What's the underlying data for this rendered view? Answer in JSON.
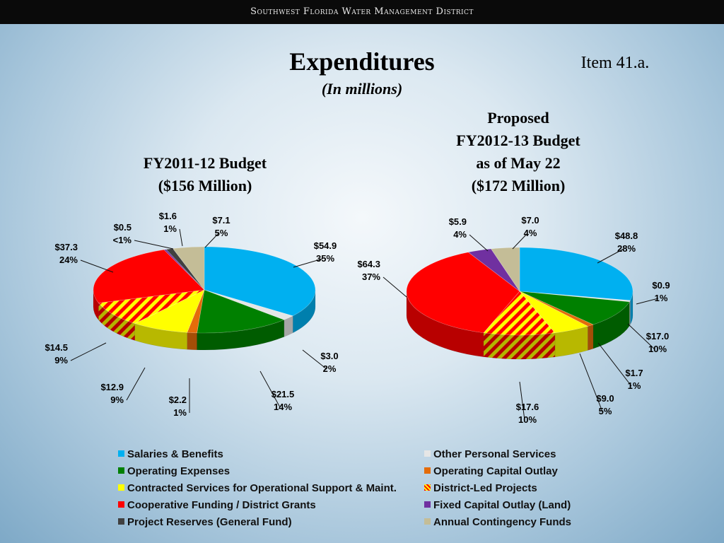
{
  "header": {
    "org": "Southwest Florida Water Management District"
  },
  "slide": {
    "title": "Expenditures",
    "subtitle": "(In millions)",
    "item": "Item 41.a."
  },
  "colors": {
    "salaries": "#00b0f0",
    "other_personal": "#e6e6e6",
    "operating_expenses": "#008000",
    "operating_capital": "#e46c0a",
    "contracted": "#ffff00",
    "district_led": "#ff0000/#ffff00 hatched",
    "cooperative": "#ff0000",
    "fixed_capital": "#7030a0",
    "reserves": "#404040",
    "contingency": "#c4bd97"
  },
  "legend": [
    {
      "label": "Salaries & Benefits",
      "color": "#00b0f0",
      "pattern": false
    },
    {
      "label": "Other Personal Services",
      "color": "#e6e6e6",
      "pattern": false
    },
    {
      "label": "Operating Expenses",
      "color": "#008000",
      "pattern": false
    },
    {
      "label": "Operating Capital Outlay",
      "color": "#e46c0a",
      "pattern": false
    },
    {
      "label": "Contracted Services for Operational Support & Maint.",
      "color": "#ffff00",
      "pattern": false
    },
    {
      "label": "District-Led Projects",
      "color": "#ff0000",
      "pattern": true
    },
    {
      "label": "Cooperative Funding / District Grants",
      "color": "#ff0000",
      "pattern": false
    },
    {
      "label": "Fixed Capital Outlay (Land)",
      "color": "#7030a0",
      "pattern": false
    },
    {
      "label": "Project Reserves (General Fund)",
      "color": "#404040",
      "pattern": false
    },
    {
      "label": "Annual Contingency Funds",
      "color": "#c4bd97",
      "pattern": false
    }
  ],
  "chart_data": [
    {
      "type": "pie",
      "title": [
        "FY2011-12 Budget",
        "($156 Million)"
      ],
      "slices": [
        {
          "category": "Salaries & Benefits",
          "value": 54.9,
          "value_label": "$54.9",
          "pct_label": "35%",
          "color": "#00b0f0"
        },
        {
          "category": "Other Personal Services",
          "value": 3.0,
          "value_label": "$3.0",
          "pct_label": "2%",
          "color": "#e6e6e6"
        },
        {
          "category": "Operating Expenses",
          "value": 21.5,
          "value_label": "$21.5",
          "pct_label": "14%",
          "color": "#008000"
        },
        {
          "category": "Operating Capital Outlay",
          "value": 2.2,
          "value_label": "$2.2",
          "pct_label": "1%",
          "color": "#e46c0a"
        },
        {
          "category": "Contracted Services for Operational Support & Maint.",
          "value": 12.9,
          "value_label": "$12.9",
          "pct_label": "9%",
          "color": "#ffff00"
        },
        {
          "category": "District-Led Projects",
          "value": 14.5,
          "value_label": "$14.5",
          "pct_label": "9%",
          "color": "#ff0000",
          "pattern": true
        },
        {
          "category": "Cooperative Funding / District Grants",
          "value": 37.3,
          "value_label": "$37.3",
          "pct_label": "24%",
          "color": "#ff0000"
        },
        {
          "category": "Fixed Capital Outlay (Land)",
          "value": 0.5,
          "value_label": "$0.5",
          "pct_label": "<1%",
          "color": "#7030a0"
        },
        {
          "category": "Project Reserves (General Fund)",
          "value": 1.6,
          "value_label": "$1.6",
          "pct_label": "1%",
          "color": "#404040"
        },
        {
          "category": "Annual Contingency Funds",
          "value": 7.1,
          "value_label": "$7.1",
          "pct_label": "5%",
          "color": "#c4bd97"
        }
      ]
    },
    {
      "type": "pie",
      "title": [
        "Proposed",
        "FY2012-13 Budget",
        "as of May 22",
        "($172 Million)"
      ],
      "slices": [
        {
          "category": "Salaries & Benefits",
          "value": 48.8,
          "value_label": "$48.8",
          "pct_label": "28%",
          "color": "#00b0f0"
        },
        {
          "category": "Other Personal Services",
          "value": 0.9,
          "value_label": "$0.9",
          "pct_label": "1%",
          "color": "#e6e6e6"
        },
        {
          "category": "Operating Expenses",
          "value": 17.0,
          "value_label": "$17.0",
          "pct_label": "10%",
          "color": "#008000"
        },
        {
          "category": "Operating Capital Outlay",
          "value": 1.7,
          "value_label": "$1.7",
          "pct_label": "1%",
          "color": "#e46c0a"
        },
        {
          "category": "Contracted Services for Operational Support & Maint.",
          "value": 9.0,
          "value_label": "$9.0",
          "pct_label": "5%",
          "color": "#ffff00"
        },
        {
          "category": "District-Led Projects",
          "value": 17.6,
          "value_label": "$17.6",
          "pct_label": "10%",
          "color": "#ff0000",
          "pattern": true
        },
        {
          "category": "Cooperative Funding / District Grants",
          "value": 64.3,
          "value_label": "$64.3",
          "pct_label": "37%",
          "color": "#ff0000"
        },
        {
          "category": "Fixed Capital Outlay (Land)",
          "value": 5.9,
          "value_label": "$5.9",
          "pct_label": "4%",
          "color": "#7030a0"
        },
        {
          "category": "Annual Contingency Funds",
          "value": 7.0,
          "value_label": "$7.0",
          "pct_label": "4%",
          "color": "#c4bd97"
        }
      ]
    }
  ]
}
